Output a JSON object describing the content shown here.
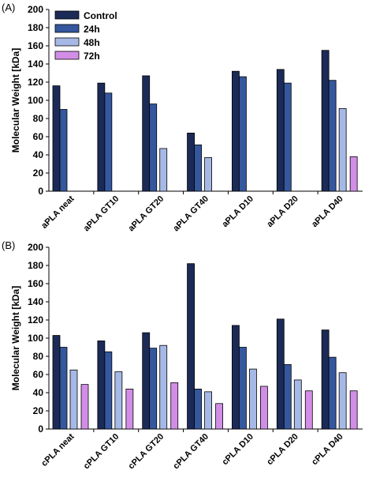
{
  "figure_labels": [
    "(A)",
    "(B)"
  ],
  "colors": {
    "Control": "#1b2a57",
    "24h": "#34579e",
    "48h": "#a6b9e6",
    "72h": "#d28ee6"
  },
  "legend": [
    "Control",
    "24h",
    "48h",
    "72h"
  ],
  "chart_data": [
    {
      "type": "bar",
      "panel": "(A)",
      "ylabel": "Molecular Weight [kDa]",
      "ylim": [
        0,
        200
      ],
      "yticks": [
        0,
        20,
        40,
        60,
        80,
        100,
        120,
        140,
        160,
        180,
        200
      ],
      "categories": [
        "aPLA neat",
        "aPLA GT10",
        "aPLA GT20",
        "aPLA GT40",
        "aPLA D10",
        "aPLA D20",
        "aPLA D40"
      ],
      "legend_position": "top-left",
      "series": [
        {
          "name": "Control",
          "values": [
            116,
            119,
            127,
            64,
            132,
            134,
            155
          ]
        },
        {
          "name": "24h",
          "values": [
            90,
            108,
            96,
            51,
            126,
            119,
            122
          ]
        },
        {
          "name": "48h",
          "values": [
            null,
            null,
            47,
            37,
            null,
            null,
            91
          ]
        },
        {
          "name": "72h",
          "values": [
            null,
            null,
            null,
            null,
            null,
            null,
            38
          ]
        }
      ]
    },
    {
      "type": "bar",
      "panel": "(B)",
      "ylabel": "Molecular Weight [kDa]",
      "ylim": [
        0,
        200
      ],
      "yticks": [
        0,
        20,
        40,
        60,
        80,
        100,
        120,
        140,
        160,
        180,
        200
      ],
      "categories": [
        "cPLA neat",
        "cPLA GT10",
        "cPLA GT20",
        "cPLA GT40",
        "cPLA D10",
        "cPLA D20",
        "cPLA D40"
      ],
      "series": [
        {
          "name": "Control",
          "values": [
            103,
            97,
            106,
            182,
            114,
            121,
            109
          ]
        },
        {
          "name": "24h",
          "values": [
            90,
            85,
            89,
            44,
            90,
            71,
            79
          ]
        },
        {
          "name": "48h",
          "values": [
            65,
            63,
            92,
            41,
            66,
            54,
            62
          ]
        },
        {
          "name": "72h",
          "values": [
            49,
            44,
            51,
            28,
            47,
            42,
            42
          ]
        }
      ]
    }
  ]
}
